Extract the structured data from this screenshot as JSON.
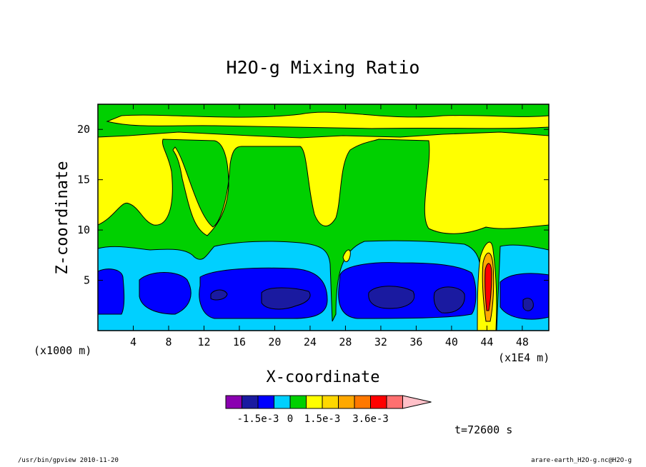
{
  "chart_data": {
    "type": "heatmap",
    "title": "H2O-g Mixing Ratio",
    "xlabel": "X-coordinate",
    "ylabel": "Z-coordinate",
    "x_unit_left": "(x1000 m)",
    "x_unit_right": "(x1E4 m)",
    "x_ticks": [
      "4",
      "8",
      "12",
      "16",
      "20",
      "24",
      "28",
      "32",
      "36",
      "40",
      "44",
      "48"
    ],
    "y_ticks": [
      "5",
      "10",
      "15",
      "20"
    ],
    "xlim": [
      0,
      51
    ],
    "ylim": [
      0,
      22.5
    ],
    "colorbar": {
      "colors": [
        "#8a00b0",
        "#1a1aa0",
        "#0000ff",
        "#00d0ff",
        "#00d000",
        "#ffff00",
        "#ffd800",
        "#ffa800",
        "#ff7800",
        "#ff0000",
        "#ff7070",
        "#ffc0c8"
      ],
      "labels": [
        "-1.5e-3",
        "0",
        "1.5e-3",
        "3.6e-3"
      ]
    },
    "time_label": "t=72600 s"
  },
  "footer": {
    "left": "/usr/bin/gpview   2010-11-20",
    "right": "arare-earth_H2O-g.nc@H2O-g"
  }
}
